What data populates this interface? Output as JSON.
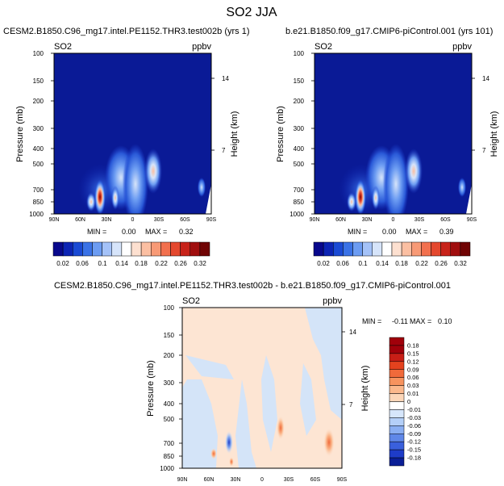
{
  "figure_title": "SO2 JJA",
  "chart_data": [
    {
      "type": "heatmap",
      "panel": "left",
      "title": "CESM2.B1850.C96_mg17.intel.PE1152.THR3.test002b (yrs 1)",
      "variable": "SO2",
      "units": "ppbv",
      "ylabel": "Pressure (mb)",
      "ylabel_right": "Height (km)",
      "x_ticks": [
        "90N",
        "60N",
        "30N",
        "0",
        "30S",
        "60S",
        "90S"
      ],
      "y_ticks": [
        "100",
        "150",
        "200",
        "300",
        "400",
        "500",
        "700",
        "850",
        "1000"
      ],
      "height_ticks": [
        "14",
        "7"
      ],
      "min_label": "MIN =",
      "min_value": "0.00",
      "max_label": "MAX =",
      "max_value": "0.32",
      "colorbar_levels": [
        "0.02",
        "0.06",
        "0.1",
        "0.14",
        "0.18",
        "0.22",
        "0.26",
        "0.32"
      ]
    },
    {
      "type": "heatmap",
      "panel": "right",
      "title": "b.e21.B1850.f09_g17.CMIP6-piControl.001 (yrs 101)",
      "variable": "SO2",
      "units": "ppbv",
      "ylabel": "Pressure (mb)",
      "ylabel_right": "Height (km)",
      "x_ticks": [
        "90N",
        "60N",
        "30N",
        "0",
        "30S",
        "60S",
        "90S"
      ],
      "y_ticks": [
        "100",
        "150",
        "200",
        "300",
        "400",
        "500",
        "700",
        "850",
        "1000"
      ],
      "height_ticks": [
        "14",
        "7"
      ],
      "min_label": "MIN =",
      "min_value": "0.00",
      "max_label": "MAX =",
      "max_value": "0.39",
      "colorbar_levels": [
        "0.02",
        "0.06",
        "0.1",
        "0.14",
        "0.18",
        "0.22",
        "0.26",
        "0.32"
      ]
    },
    {
      "type": "heatmap",
      "panel": "difference",
      "title": "CESM2.B1850.C96_mg17.intel.PE1152.THR3.test002b - b.e21.B1850.f09_g17.CMIP6-piControl.001",
      "variable": "SO2",
      "units": "ppbv",
      "ylabel": "Pressure (mb)",
      "ylabel_right": "Height (km)",
      "x_ticks": [
        "90N",
        "60N",
        "30N",
        "0",
        "30S",
        "60S",
        "90S"
      ],
      "y_ticks": [
        "100",
        "150",
        "200",
        "300",
        "400",
        "500",
        "700",
        "850",
        "1000"
      ],
      "height_ticks": [
        "14",
        "7"
      ],
      "min_label": "MIN =",
      "min_value": "-0.11",
      "max_label": "MAX =",
      "max_value": "0.10",
      "colorbar_levels": [
        "0.18",
        "0.15",
        "0.12",
        "0.09",
        "0.06",
        "0.03",
        "0.01",
        "0",
        "-0.01",
        "-0.03",
        "-0.06",
        "-0.09",
        "-0.12",
        "-0.15",
        "-0.18"
      ]
    }
  ],
  "colors": {
    "seq_palette": [
      "#08088c",
      "#0c24b4",
      "#1a4ad4",
      "#3a72e6",
      "#6c9cf2",
      "#a4c2f8",
      "#d6e4fa",
      "#ffffff",
      "#fde0d0",
      "#fbbfa2",
      "#f89a76",
      "#f2704e",
      "#e4482e",
      "#c8231a",
      "#a00e0e",
      "#700404"
    ],
    "div_palette": [
      "#a0000a",
      "#c81e16",
      "#e4421e",
      "#f06a3a",
      "#f7935e",
      "#fbb88c",
      "#fcd6b8",
      "#fbe5d5",
      "#d6e6fb",
      "#b4cff8",
      "#8aaef2",
      "#5f87e8",
      "#3a60dc",
      "#1e3cc8",
      "#0a1e96"
    ],
    "field_background": "#0a1a96",
    "diff_background": "#fde5d3",
    "diff_negative": "#d4e4f8"
  }
}
